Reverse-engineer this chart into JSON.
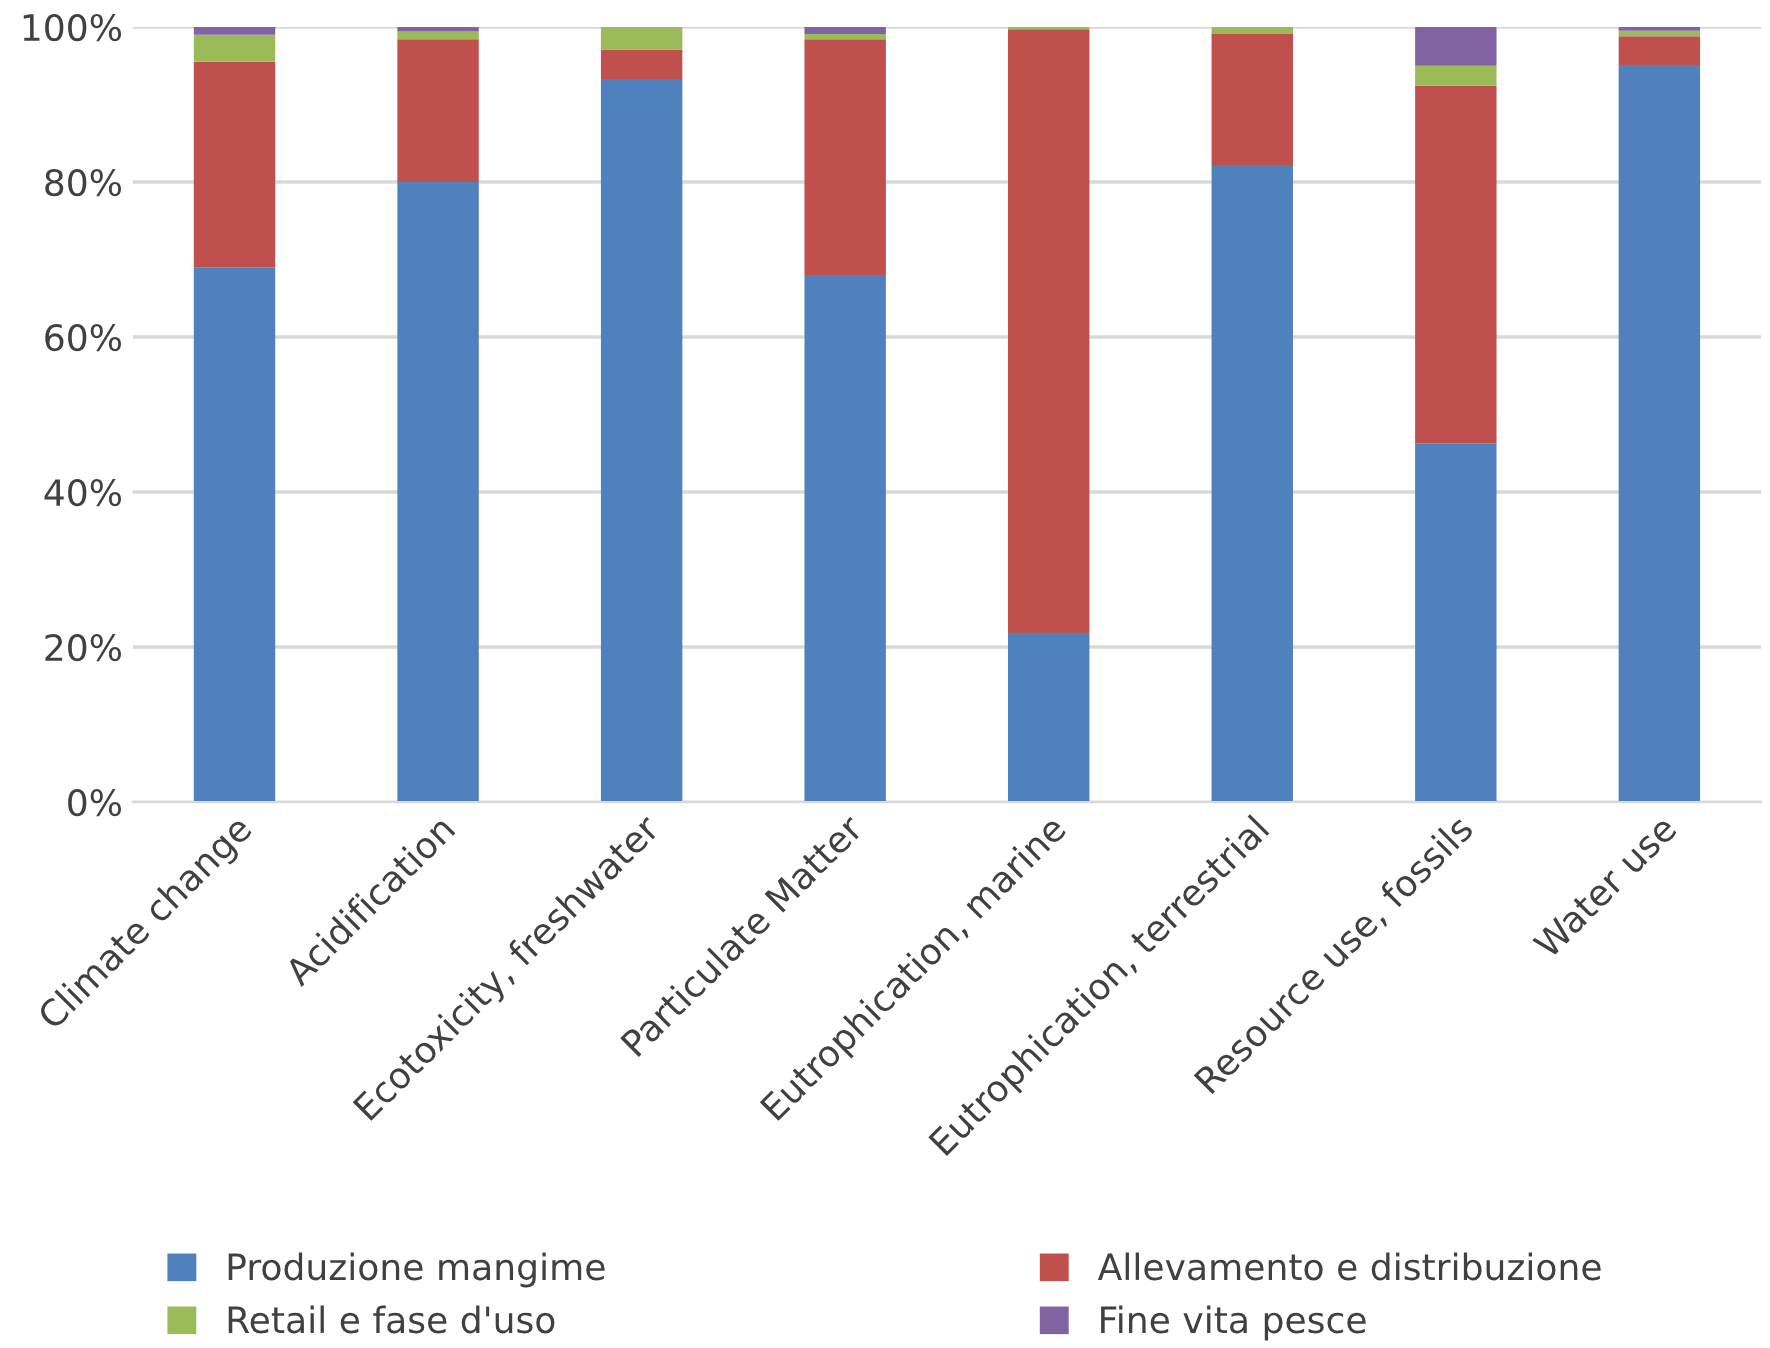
{
  "chart_data": {
    "type": "bar",
    "stacked": true,
    "categories": [
      "Climate change",
      "Acidification",
      "Ecotoxicity, freshwater",
      "Particulate Matter",
      "Eutrophication, marine",
      "Eutrophication, terrestrial",
      "Resource use, fossils",
      "Water use"
    ],
    "series": [
      {
        "name": "Produzione mangime",
        "color": "#4f81bd",
        "values": [
          69,
          80,
          93.3,
          68,
          21.8,
          82.2,
          46.3,
          95.1
        ]
      },
      {
        "name": "Allevamento e distribuzione",
        "color": "#c0504d",
        "values": [
          26.5,
          18.4,
          3.8,
          30.4,
          77.9,
          16.9,
          46.1,
          3.7
        ]
      },
      {
        "name": "Retail e fase d'uso",
        "color": "#9bbb59",
        "values": [
          3.5,
          1,
          2.9,
          0.7,
          0.3,
          0.9,
          2.6,
          0.7
        ]
      },
      {
        "name": "Fine vita pesce",
        "color": "#8064a2",
        "values": [
          1,
          0.6,
          0,
          0.9,
          0,
          0,
          5,
          0.5
        ]
      }
    ],
    "ylim": [
      0,
      100
    ],
    "yticks": [
      {
        "value": 0,
        "label": "0%"
      },
      {
        "value": 20,
        "label": "20%"
      },
      {
        "value": 40,
        "label": "40%"
      },
      {
        "value": 60,
        "label": "60%"
      },
      {
        "value": 80,
        "label": "80%"
      },
      {
        "value": 100,
        "label": "100%"
      }
    ],
    "grid": "y",
    "legend": "bottom"
  }
}
